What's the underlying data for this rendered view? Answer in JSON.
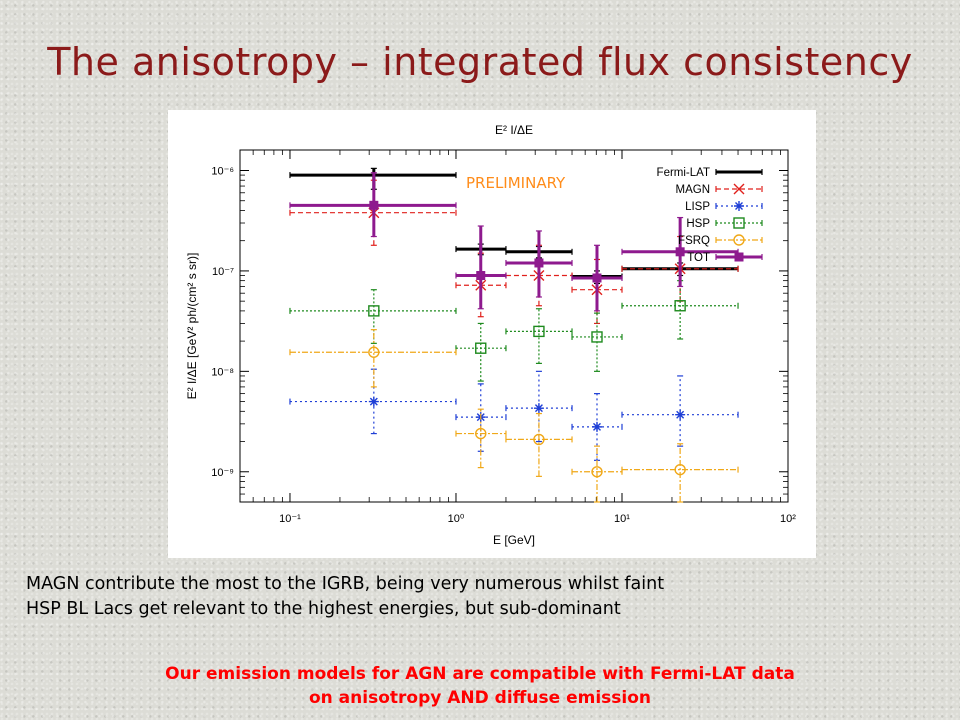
{
  "slide": {
    "title": "The anisotropy – integrated flux consistency",
    "notes": [
      "MAGN contribute the most to the IGRB, being very numerous whilst faint",
      "HSP BL Lacs  get relevant to the highest energies, but sub-dominant"
    ],
    "conclusion": [
      "Our emission models for AGN are compatible with Fermi-LAT data",
      "on anisotropy AND diffuse emission"
    ]
  },
  "chart_data": {
    "type": "scatter",
    "title": "E² I/ΔE",
    "xlabel": "E [GeV]",
    "ylabel": "E² I/ΔE [GeV² ph/(cm² s sr)]",
    "xscale": "log",
    "yscale": "log",
    "xlim": [
      0.05,
      100
    ],
    "ylim": [
      5e-10,
      1.6e-06
    ],
    "xticks": [
      {
        "v": 0.1,
        "label": "10⁻¹"
      },
      {
        "v": 1,
        "label": "10⁰"
      },
      {
        "v": 10,
        "label": "10¹"
      },
      {
        "v": 100,
        "label": "10²"
      }
    ],
    "yticks": [
      {
        "v": 1e-09,
        "label": "10⁻⁹"
      },
      {
        "v": 1e-08,
        "label": "10⁻⁸"
      },
      {
        "v": 1e-07,
        "label": "10⁻⁷"
      },
      {
        "v": 1e-06,
        "label": "10⁻⁶"
      }
    ],
    "annotation": "PRELIMINARY",
    "annotation_color": "#ff8c1a",
    "legend_position": "top-right",
    "grid": false,
    "bins": [
      {
        "lo": 0.1,
        "hi": 1
      },
      {
        "lo": 1,
        "hi": 2
      },
      {
        "lo": 2,
        "hi": 5
      },
      {
        "lo": 5,
        "hi": 10
      },
      {
        "lo": 10,
        "hi": 50
      }
    ],
    "series": [
      {
        "name": "Fermi-LAT",
        "color": "#000000",
        "marker": "none",
        "linewidth": 3,
        "dash": "",
        "points": [
          {
            "x": 0.32,
            "y": 9e-07,
            "ylo": 6.5e-07,
            "yhi": 1.05e-06
          },
          {
            "x": 1.41,
            "y": 1.65e-07,
            "ylo": 1.45e-07,
            "yhi": 1.85e-07
          },
          {
            "x": 3.16,
            "y": 1.55e-07,
            "ylo": 1.35e-07,
            "yhi": 1.75e-07
          },
          {
            "x": 7.07,
            "y": 8.8e-08,
            "ylo": 7.5e-08,
            "yhi": 1e-07
          },
          {
            "x": 22.4,
            "y": 1.05e-07,
            "ylo": 9e-08,
            "yhi": 1.2e-07
          }
        ]
      },
      {
        "name": "MAGN",
        "color": "#e0201c",
        "marker": "x",
        "linewidth": 1.2,
        "dash": "5,3",
        "points": [
          {
            "x": 0.32,
            "y": 3.8e-07,
            "ylo": 1.8e-07,
            "yhi": 8e-07
          },
          {
            "x": 1.41,
            "y": 7.2e-08,
            "ylo": 3.5e-08,
            "yhi": 1.5e-07
          },
          {
            "x": 3.16,
            "y": 9e-08,
            "ylo": 4.5e-08,
            "yhi": 1.8e-07
          },
          {
            "x": 7.07,
            "y": 6.5e-08,
            "ylo": 3e-08,
            "yhi": 1.3e-07
          },
          {
            "x": 22.4,
            "y": 1.05e-07,
            "ylo": 5e-08,
            "yhi": 2.2e-07
          }
        ]
      },
      {
        "name": "LISP",
        "color": "#1f3fd6",
        "marker": "asterisk",
        "linewidth": 1.2,
        "dash": "2,3",
        "points": [
          {
            "x": 0.32,
            "y": 5e-09,
            "ylo": 2.4e-09,
            "yhi": 1.05e-08
          },
          {
            "x": 1.41,
            "y": 3.5e-09,
            "ylo": 1.6e-09,
            "yhi": 7.5e-09
          },
          {
            "x": 3.16,
            "y": 4.3e-09,
            "ylo": 2e-09,
            "yhi": 1e-08
          },
          {
            "x": 7.07,
            "y": 2.8e-09,
            "ylo": 1.3e-09,
            "yhi": 6e-09
          },
          {
            "x": 22.4,
            "y": 3.7e-09,
            "ylo": 1.8e-09,
            "yhi": 9e-09
          }
        ]
      },
      {
        "name": "HSP",
        "color": "#1e8a1e",
        "marker": "square",
        "linewidth": 1.2,
        "dash": "2,2",
        "points": [
          {
            "x": 0.32,
            "y": 4e-08,
            "ylo": 1.9e-08,
            "yhi": 6.5e-08
          },
          {
            "x": 1.41,
            "y": 1.7e-08,
            "ylo": 8e-09,
            "yhi": 3e-08
          },
          {
            "x": 3.16,
            "y": 2.5e-08,
            "ylo": 1.2e-08,
            "yhi": 4.2e-08
          },
          {
            "x": 7.07,
            "y": 2.2e-08,
            "ylo": 1e-08,
            "yhi": 3.8e-08
          },
          {
            "x": 22.4,
            "y": 4.5e-08,
            "ylo": 2.1e-08,
            "yhi": 8e-08
          }
        ]
      },
      {
        "name": "FSRQ",
        "color": "#f0a818",
        "marker": "circle",
        "linewidth": 1.2,
        "dash": "6,2,2,2",
        "points": [
          {
            "x": 0.32,
            "y": 1.55e-08,
            "ylo": 7e-09,
            "yhi": 2.6e-08
          },
          {
            "x": 1.41,
            "y": 2.4e-09,
            "ylo": 1.1e-09,
            "yhi": 4.2e-09
          },
          {
            "x": 3.16,
            "y": 2.1e-09,
            "ylo": 9e-10,
            "yhi": 3.8e-09
          },
          {
            "x": 7.07,
            "y": 1e-09,
            "ylo": 5e-10,
            "yhi": 1.8e-09
          },
          {
            "x": 22.4,
            "y": 1.05e-09,
            "ylo": 5e-10,
            "yhi": 1.9e-09
          }
        ]
      },
      {
        "name": "TOT",
        "color": "#8e1a8e",
        "marker": "filled-square",
        "linewidth": 3,
        "dash": "",
        "points": [
          {
            "x": 0.32,
            "y": 4.5e-07,
            "ylo": 2.2e-07,
            "yhi": 9.5e-07
          },
          {
            "x": 1.41,
            "y": 9e-08,
            "ylo": 4.2e-08,
            "yhi": 2.8e-07
          },
          {
            "x": 3.16,
            "y": 1.2e-07,
            "ylo": 5.5e-08,
            "yhi": 2.5e-07
          },
          {
            "x": 7.07,
            "y": 8.5e-08,
            "ylo": 4e-08,
            "yhi": 1.8e-07
          },
          {
            "x": 22.4,
            "y": 1.55e-07,
            "ylo": 7e-08,
            "yhi": 3.4e-07
          }
        ]
      }
    ]
  }
}
